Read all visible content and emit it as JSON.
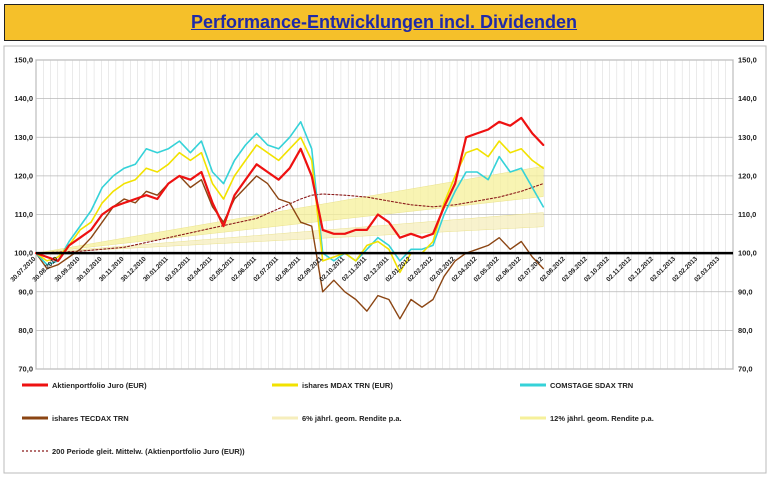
{
  "chart_data": {
    "type": "line",
    "title": "Performance-Entwicklungen incl. Dividenden",
    "ylim": [
      70,
      150
    ],
    "yticks": [
      "70,0",
      "80,0",
      "90,0",
      "100,0",
      "110,0",
      "120,0",
      "130,0",
      "140,0",
      "150,0"
    ],
    "ytick_values": [
      70,
      80,
      90,
      100,
      110,
      120,
      130,
      140,
      150
    ],
    "xticks": [
      "30.07.2010",
      "30.08.2010",
      "30.09.2010",
      "30.10.2010",
      "30.11.2010",
      "30.12.2010",
      "30.01.2011",
      "02.03.2011",
      "02.04.2011",
      "02.05.2011",
      "02.06.2011",
      "02.07.2011",
      "02.08.2011",
      "02.09.2011",
      "02.10.2011",
      "02.11.2011",
      "02.12.2011",
      "02.01.2012",
      "02.02.2012",
      "02.03.2012",
      "02.04.2012",
      "02.05.2012",
      "02.06.2012",
      "02.07.2012",
      "02.08.2012",
      "02.09.2012",
      "02.10.2012",
      "02.11.2012",
      "02.12.2012",
      "02.01.2013",
      "02.02.2013",
      "02.03.2013"
    ],
    "x_index_range": [
      0,
      31.6
    ],
    "baseline": 100,
    "series": [
      {
        "name": "Aktienportfolio Juro (EUR)",
        "color": "#ee1111",
        "width": 2.2,
        "x": [
          0,
          0.5,
          1,
          1.5,
          2,
          2.5,
          3,
          3.5,
          4,
          4.5,
          5,
          5.5,
          6,
          6.5,
          7,
          7.5,
          8,
          8.5,
          9,
          9.5,
          10,
          10.5,
          11,
          11.5,
          12,
          12.5,
          13,
          13.5,
          14,
          14.5,
          15,
          15.5,
          16,
          16.5,
          17,
          17.5,
          18,
          18.5,
          19,
          19.5,
          20,
          20.5,
          21,
          21.5,
          22,
          22.5,
          23
        ],
        "values": [
          100,
          99,
          98,
          102,
          104,
          106,
          110,
          112,
          113,
          114,
          115,
          114,
          118,
          120,
          119,
          121,
          113,
          107,
          115,
          119,
          123,
          121,
          119,
          122,
          127,
          120,
          106,
          105,
          105,
          106,
          106,
          110,
          108,
          104,
          105,
          104,
          105,
          112,
          118,
          130,
          131,
          132,
          134,
          133,
          135,
          131,
          128
        ]
      },
      {
        "name": "ishares MDAX TRN (EUR)",
        "color": "#f2e200",
        "width": 1.6,
        "x": [
          0,
          0.5,
          1,
          1.5,
          2,
          2.5,
          3,
          3.5,
          4,
          4.5,
          5,
          5.5,
          6,
          6.5,
          7,
          7.5,
          8,
          8.5,
          9,
          9.5,
          10,
          10.5,
          11,
          11.5,
          12,
          12.5,
          13,
          13.5,
          14,
          14.5,
          15,
          15.5,
          16,
          16.5,
          17,
          17.5,
          18,
          18.5,
          19,
          19.5,
          20,
          20.5,
          21,
          21.5,
          22,
          22.5,
          23
        ],
        "values": [
          100,
          98,
          99,
          102,
          106,
          108,
          113,
          116,
          118,
          119,
          122,
          121,
          123,
          126,
          124,
          126,
          118,
          114,
          120,
          124,
          128,
          126,
          124,
          127,
          130,
          124,
          98,
          99,
          100,
          98,
          102,
          103,
          101,
          95,
          100,
          100,
          103,
          113,
          120,
          126,
          127,
          125,
          129,
          126,
          127,
          124,
          122
        ]
      },
      {
        "name": "COMSTAGE SDAX TRN",
        "color": "#35d2d8",
        "width": 1.6,
        "x": [
          0,
          0.5,
          1,
          1.5,
          2,
          2.5,
          3,
          3.5,
          4,
          4.5,
          5,
          5.5,
          6,
          6.5,
          7,
          7.5,
          8,
          8.5,
          9,
          9.5,
          10,
          10.5,
          11,
          11.5,
          12,
          12.5,
          13,
          13.5,
          14,
          14.5,
          15,
          15.5,
          16,
          16.5,
          17,
          17.5,
          18,
          18.5,
          19,
          19.5,
          20,
          20.5,
          21,
          21.5,
          22,
          22.5,
          23
        ],
        "values": [
          100,
          97,
          98,
          103,
          107,
          111,
          117,
          120,
          122,
          123,
          127,
          126,
          127,
          129,
          126,
          129,
          121,
          118,
          124,
          128,
          131,
          128,
          127,
          130,
          134,
          127,
          100,
          98,
          100,
          98,
          101,
          104,
          102,
          98,
          101,
          101,
          102,
          110,
          116,
          121,
          121,
          119,
          125,
          121,
          122,
          117,
          112
        ]
      },
      {
        "name": "ishares TECDAX TRN",
        "color": "#8b4513",
        "width": 1.4,
        "x": [
          0,
          0.5,
          1,
          1.5,
          2,
          2.5,
          3,
          3.5,
          4,
          4.5,
          5,
          5.5,
          6,
          6.5,
          7,
          7.5,
          8,
          8.5,
          9,
          9.5,
          10,
          10.5,
          11,
          11.5,
          12,
          12.5,
          13,
          13.5,
          14,
          14.5,
          15,
          15.5,
          16,
          16.5,
          17,
          17.5,
          18,
          18.5,
          19,
          19.5,
          20,
          20.5,
          21,
          21.5,
          22,
          22.5,
          23
        ],
        "values": [
          100,
          96,
          97,
          99,
          101,
          104,
          108,
          112,
          114,
          113,
          116,
          115,
          118,
          120,
          117,
          119,
          112,
          108,
          114,
          117,
          120,
          118,
          114,
          113,
          108,
          107,
          90,
          93,
          90,
          88,
          85,
          89,
          88,
          83,
          88,
          86,
          88,
          94,
          98,
          100,
          101,
          102,
          104,
          101,
          103,
          99,
          96
        ]
      },
      {
        "name": "200 Periode gleit. Mittelw. (Aktienportfolio Juro (EUR))",
        "color": "#8b1a1a",
        "width": 1.1,
        "dash": "2,2",
        "x": [
          0,
          2,
          4,
          6,
          8,
          10,
          11,
          12,
          12.5,
          13,
          14,
          15,
          16,
          17,
          18,
          19,
          20,
          21,
          22,
          23
        ],
        "values": [
          100,
          100.5,
          101.5,
          104,
          106.5,
          109,
          111.5,
          114,
          115,
          115.3,
          115,
          114.5,
          113.5,
          112.5,
          112,
          112.5,
          113.5,
          114.5,
          116,
          118
        ]
      }
    ],
    "bands": [
      {
        "name": "6% jährl. geom. Rendite p.a.",
        "color": "#f6eebc",
        "x": [
          0,
          23
        ],
        "values": [
          100,
          110.5
        ]
      },
      {
        "name": "12% jährl. geom. Rendite p.a.",
        "color": "#f6f09a",
        "x": [
          0,
          23
        ],
        "values": [
          100,
          122.5
        ]
      }
    ],
    "legend": [
      {
        "label": "Aktienportfolio Juro (EUR)",
        "color": "#ee1111",
        "style": "solid"
      },
      {
        "label": "ishares MDAX TRN (EUR)",
        "color": "#f2e200",
        "style": "solid"
      },
      {
        "label": "COMSTAGE SDAX TRN",
        "color": "#35d2d8",
        "style": "solid"
      },
      {
        "label": "ishares TECDAX TRN",
        "color": "#8b4513",
        "style": "solid"
      },
      {
        "label": "6% jährl. geom. Rendite p.a.",
        "color": "#f6eebc",
        "style": "solid"
      },
      {
        "label": "12% jährl. geom. Rendite p.a.",
        "color": "#f6f09a",
        "style": "solid"
      },
      {
        "label": "200 Periode gleit. Mittelw. (Aktienportfolio Juro (EUR))",
        "color": "#8b1a1a",
        "style": "dotted"
      }
    ]
  }
}
